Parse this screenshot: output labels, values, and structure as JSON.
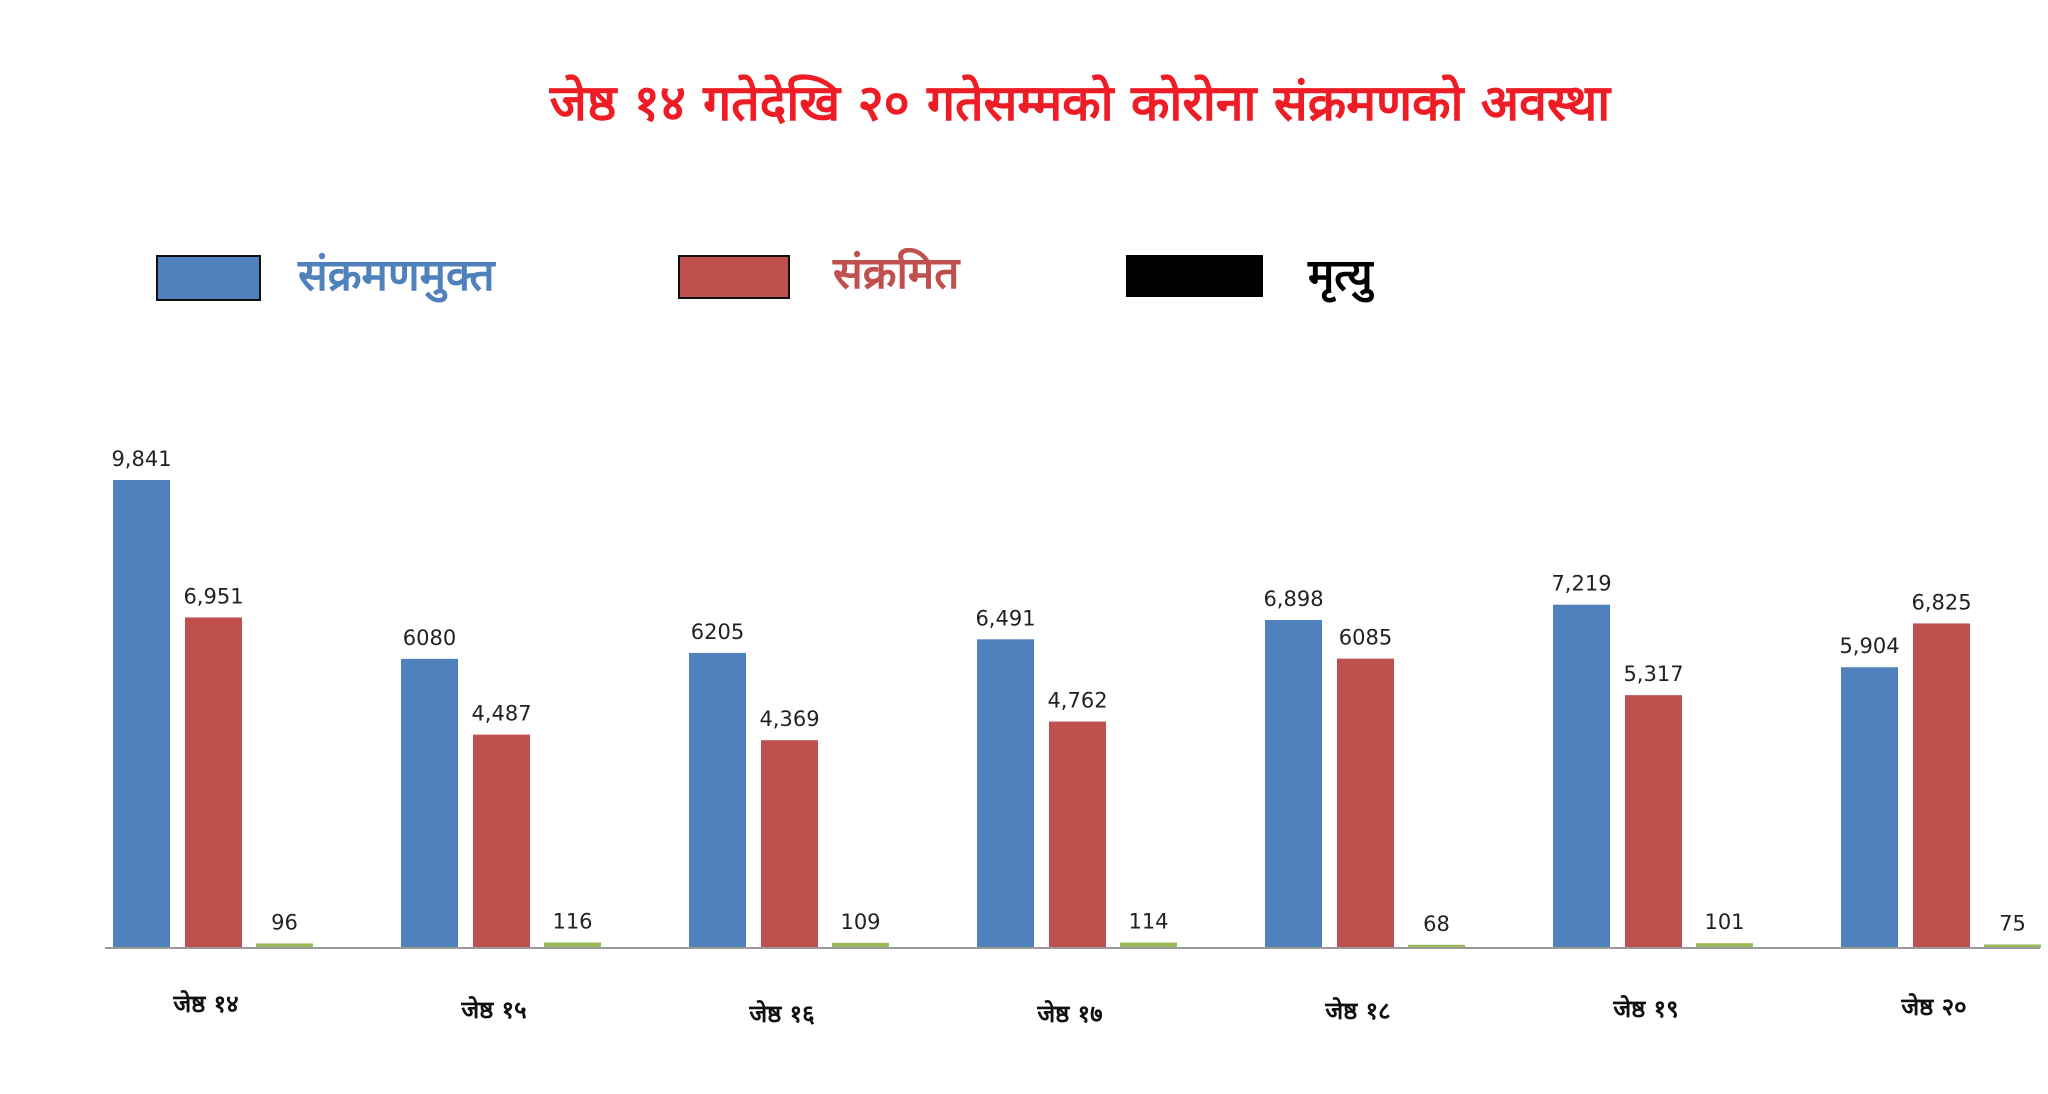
{
  "chart_data": {
    "type": "bar",
    "title": "जेष्ठ १४ गतेदेखि २० गतेसम्मको कोरोना संक्रमणको अवस्था",
    "categories": [
      "जेष्ठ १४",
      "जेष्ठ १५",
      "जेष्ठ १६",
      "जेष्ठ १७",
      "जेष्ठ १८",
      "जेष्ठ १९",
      "जेष्ठ २०"
    ],
    "series": [
      {
        "name": "संक्रमणमुक्त",
        "color": "#4f81bd",
        "values": [
          9841,
          6080,
          6205,
          6491,
          6898,
          7219,
          5904
        ],
        "labels": [
          "9,841",
          "6080",
          "6205",
          "6,491",
          "6,898",
          "7,219",
          "5,904"
        ]
      },
      {
        "name": "संक्रमित",
        "color": "#c0504d",
        "values": [
          6951,
          4487,
          4369,
          4762,
          6085,
          5317,
          6825
        ],
        "labels": [
          "6,951",
          "4,487",
          "4,369",
          "4,762",
          "6085",
          "5,317",
          "6,825"
        ]
      },
      {
        "name": "मृत्यु",
        "color": "#9bbb59",
        "legend_color": "#000000",
        "values": [
          96,
          116,
          109,
          114,
          68,
          101,
          75
        ],
        "labels": [
          "96",
          "116",
          "109",
          "114",
          "68",
          "101",
          "75"
        ]
      }
    ],
    "ylim": [
      0,
      9841
    ],
    "xlabel": "",
    "ylabel": "",
    "grid": false,
    "legend": "top-left"
  }
}
